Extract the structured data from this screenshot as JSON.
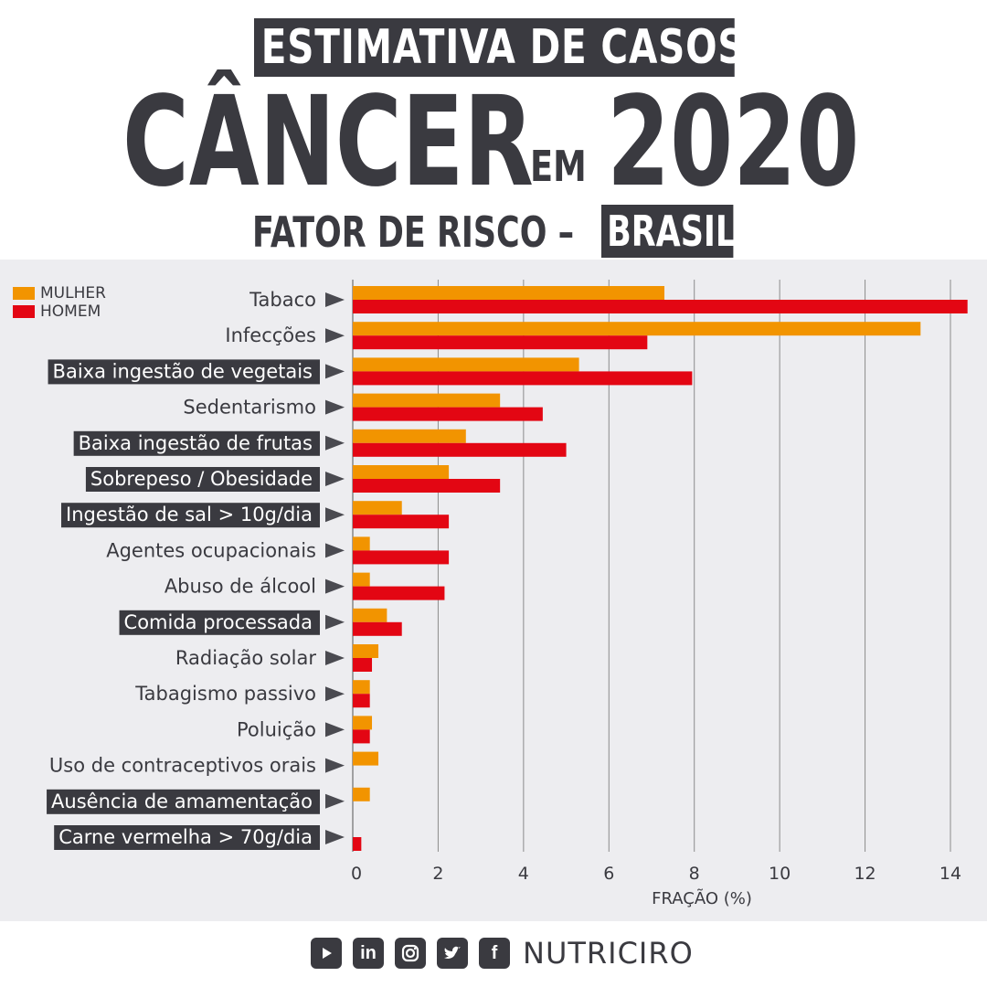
{
  "header": {
    "line1": "ESTIMATIVA DE CASOS DE",
    "big_word": "CÂNCER",
    "small_word": "EM",
    "year": "2020",
    "subtitle": "FATOR DE RISCO –",
    "country": "BRASIL"
  },
  "footer": {
    "icons": [
      "youtube-icon",
      "linkedin-icon",
      "instagram-icon",
      "twitter-icon",
      "facebook-icon"
    ],
    "brand": "NUTRICIRO"
  },
  "colors": {
    "mulher": "#f29400",
    "homem": "#e30613",
    "dark": "#3a3a40",
    "background": "#ededf0",
    "grid": "#8c8c8c"
  },
  "chart_data": {
    "type": "bar",
    "orientation": "horizontal",
    "xlabel": "FRAÇÃO (%)",
    "xlim": [
      0,
      14.5
    ],
    "xticks": [
      0,
      2,
      4,
      6,
      8,
      10,
      12,
      14
    ],
    "grid": true,
    "legend_position": "top-left",
    "categories": [
      "Tabaco",
      "Infecções",
      "Baixa ingestão de vegetais",
      "Sedentarismo",
      "Baixa ingestão de frutas",
      "Sobrepeso / Obesidade",
      "Ingestão de sal > 10g/dia",
      "Agentes ocupacionais",
      "Abuso de álcool",
      "Comida processada",
      "Radiação solar",
      "Tabagismo passivo",
      "Poluição",
      "Uso de contraceptivos orais",
      "Ausência de amamentação",
      "Carne vermelha > 70g/dia"
    ],
    "highlighted": [
      "Baixa ingestão de vegetais",
      "Baixa ingestão de frutas",
      "Sobrepeso / Obesidade",
      "Ingestão de sal > 10g/dia",
      "Comida processada",
      "Ausência de amamentação",
      "Carne vermelha > 70g/dia"
    ],
    "series": [
      {
        "name": "MULHER",
        "values": [
          7.3,
          13.3,
          5.3,
          3.45,
          2.65,
          2.25,
          1.15,
          0.4,
          0.4,
          0.8,
          0.6,
          0.4,
          0.45,
          0.6,
          0.4,
          null
        ]
      },
      {
        "name": "HOMEM",
        "values": [
          14.4,
          6.9,
          7.95,
          4.45,
          5.0,
          3.45,
          2.25,
          2.25,
          2.15,
          1.15,
          0.45,
          0.4,
          0.4,
          null,
          null,
          0.2
        ]
      }
    ]
  }
}
